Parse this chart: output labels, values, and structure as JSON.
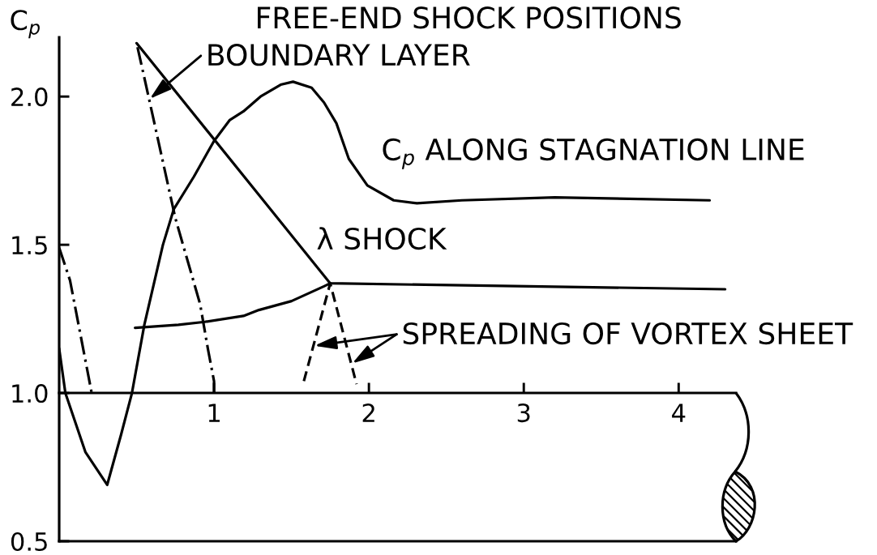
{
  "chart_data": {
    "type": "line",
    "title": "FREE-END SHOCK POSITIONS",
    "ylabel": "C$_{p}$",
    "series": [
      {
        "name": "C$_{p}$ ALONG STAGNATION LINE",
        "color": "#000000",
        "line_style": "solid",
        "x": [
          0.0,
          0.04,
          0.17,
          0.31,
          0.4,
          0.47,
          0.55,
          0.67,
          0.74,
          0.87,
          1.0,
          1.1,
          1.19,
          1.3,
          1.43,
          1.51,
          1.63,
          1.71,
          1.79,
          1.87,
          1.99,
          2.16,
          2.31,
          2.6,
          3.2,
          4.2
        ],
        "values": [
          1.15,
          1.0,
          0.8,
          0.69,
          0.86,
          1.0,
          1.23,
          1.5,
          1.62,
          1.73,
          1.85,
          1.92,
          1.95,
          2.0,
          2.04,
          2.05,
          2.03,
          1.98,
          1.91,
          1.79,
          1.7,
          1.65,
          1.64,
          1.65,
          1.66,
          1.65
        ]
      },
      {
        "name": "λ SHOCK",
        "color": "#000000",
        "line_style": "solid",
        "x": [
          0.5,
          1.75,
          4.3
        ],
        "values": [
          2.18,
          1.37,
          1.35
        ]
      },
      {
        "color": "#000000",
        "line_style": "solid",
        "x": [
          0.49,
          0.77,
          0.94,
          1.19,
          1.29,
          1.5,
          1.71,
          1.75
        ],
        "values": [
          1.22,
          1.23,
          1.24,
          1.26,
          1.28,
          1.31,
          1.36,
          1.37
        ]
      },
      {
        "color": "#000000",
        "line_style": "dashdot",
        "x": [
          1.0,
          1.0,
          0.96,
          0.91,
          0.75,
          0.56,
          0.5
        ],
        "values": [
          1.0,
          1.04,
          1.15,
          1.3,
          1.59,
          2.04,
          2.18
        ]
      },
      {
        "color": "#000000",
        "line_style": "dashdot",
        "x": [
          0.0,
          0.07,
          0.21
        ],
        "values": [
          1.49,
          1.38,
          1.0
        ]
      },
      {
        "color": "#000000",
        "line_style": "dashed",
        "x": [
          1.58,
          1.75,
          1.92
        ],
        "values": [
          1.04,
          1.37,
          1.03
        ]
      }
    ],
    "annotations": [
      {
        "text": "BOUNDARY LAYER",
        "x": 0.58,
        "y": 1.99
      },
      "SPREADING OF VORTEX SHEET"
    ],
    "xlim": [
      0,
      4.37
    ],
    "ylim": [
      0.5,
      2.2
    ],
    "xticks": [
      1,
      2,
      3,
      4
    ],
    "yticks": [
      {
        "value": 0.5,
        "label": "0.5"
      },
      {
        "value": 1,
        "label": "1.0"
      },
      {
        "value": 1.5,
        "label": "1.5"
      },
      {
        "value": 2,
        "label": "2.0"
      }
    ]
  }
}
